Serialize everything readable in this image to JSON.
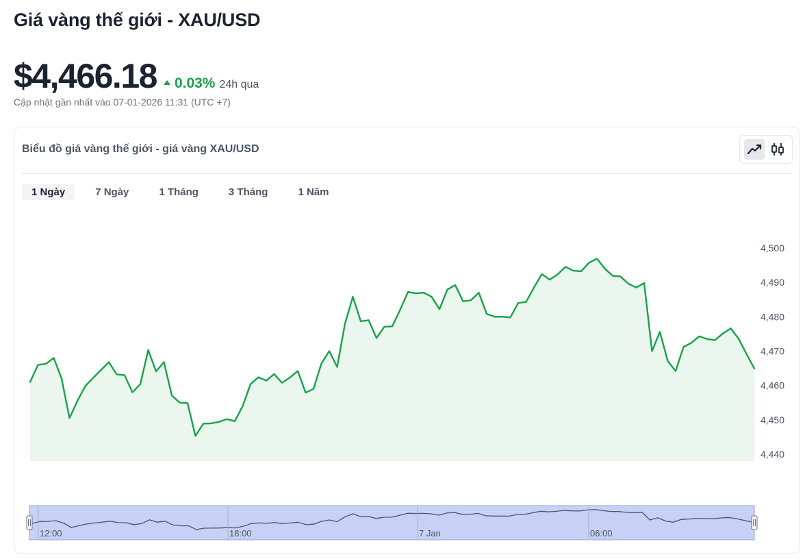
{
  "header": {
    "title": "Giá vàng thế giới - XAU/USD",
    "price": "$4,466.18",
    "change_pct": "0.03%",
    "change_period": "24h qua",
    "updated": "Cập nhật gần nhất vào 07-01-2026 11:31 (UTC +7)"
  },
  "card": {
    "title": "Biểu đồ giá vàng thế giới - giá vàng XAU/USD",
    "chart_type_buttons": [
      {
        "icon": "line-chart-icon",
        "active": true
      },
      {
        "icon": "candlestick-icon",
        "active": false
      }
    ],
    "tabs": [
      "1 Ngày",
      "7 Ngày",
      "1 Tháng",
      "3 Tháng",
      "1 Năm"
    ],
    "active_tab": 0
  },
  "colors": {
    "line": "#16a34a",
    "area": "#eaf6ee",
    "navigator_fill": "#c7d0f5",
    "up": "#16a34a"
  },
  "chart_data": {
    "type": "area",
    "yticks": [
      4440,
      4450,
      4460,
      4470,
      4480,
      4490,
      4500
    ],
    "ytick_labels": [
      "4,440",
      "4,450",
      "4,460",
      "4,470",
      "4,480",
      "4,490",
      "4,500"
    ],
    "ylim": [
      4440,
      4500
    ],
    "navigator_labels": [
      "12:00",
      "18:00",
      "7 Jan",
      "06:00"
    ],
    "values": [
      4461,
      4466,
      4466.3,
      4468,
      4462,
      4450.5,
      4455.5,
      4459.8,
      4462.2,
      4464.5,
      4466.8,
      4463.2,
      4463,
      4458,
      4460.4,
      4470.3,
      4464.1,
      4466.8,
      4457.1,
      4455,
      4454.9,
      4445.3,
      4448.9,
      4449,
      4449.4,
      4450.2,
      4449.6,
      4454,
      4460.4,
      4462.4,
      4461.4,
      4463.3,
      4460.8,
      4462.3,
      4464.2,
      4457.9,
      4459,
      4466.4,
      4470,
      4465.4,
      4478,
      4485.8,
      4478.7,
      4479,
      4473.8,
      4477.1,
      4477.2,
      4482,
      4487.2,
      4486.8,
      4487,
      4485.8,
      4482.2,
      4487.9,
      4489.2,
      4484.5,
      4484.8,
      4487,
      4480.8,
      4480,
      4480,
      4479.8,
      4484,
      4484.3,
      4488.5,
      4492.4,
      4490.8,
      4492.3,
      4494.5,
      4493.4,
      4493.2,
      4495.7,
      4496.9,
      4494,
      4491.9,
      4491.7,
      4489.6,
      4488.5,
      4489.8,
      4470,
      4475.6,
      4467.1,
      4464.2,
      4471.2,
      4472.4,
      4474.3,
      4473.5,
      4473.2,
      4475.1,
      4476.6,
      4473.6,
      4469.2,
      4464.9
    ]
  }
}
